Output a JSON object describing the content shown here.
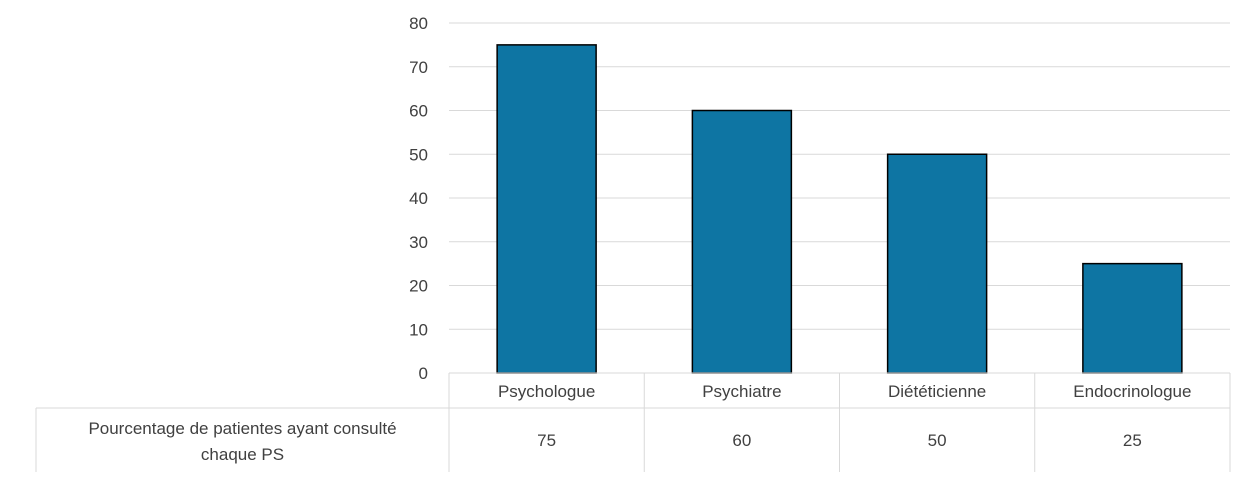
{
  "chart_data": {
    "type": "bar",
    "title": "",
    "xlabel": "",
    "ylabel": "",
    "categories": [
      "Psychologue",
      "Psychiatre",
      "Diététicienne",
      "Endocrinologue"
    ],
    "series": [
      {
        "name": "Pourcentage de patientes ayant consulté chaque PS",
        "values": [
          75,
          60,
          50,
          25
        ]
      }
    ],
    "table_row_label_lines": [
      "Pourcentage de patientes ayant consulté",
      "chaque PS"
    ],
    "ylim": [
      0,
      80
    ],
    "yticks": [
      0,
      10,
      20,
      30,
      40,
      50,
      60,
      70,
      80
    ],
    "grid": true,
    "legend": "none",
    "data_table": true,
    "colors": {
      "bar": "#0e75a3",
      "bar_stroke": "#000000",
      "grid": "#d9d9d9",
      "text": "#404040"
    }
  }
}
